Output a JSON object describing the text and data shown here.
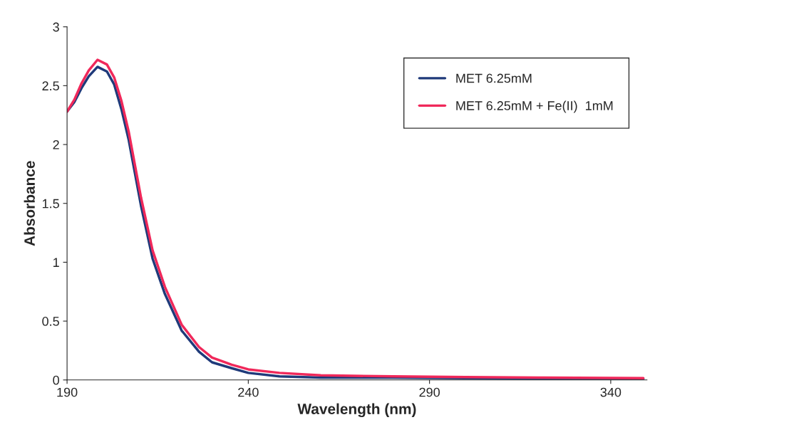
{
  "chart_data": {
    "type": "line",
    "xlabel": "Wavelength (nm)",
    "ylabel": "Absorbance",
    "xlim": [
      190,
      350
    ],
    "xticks": [
      190,
      240,
      290,
      340
    ],
    "ylim": [
      0,
      3
    ],
    "yticks": [
      0,
      0.5,
      1,
      1.5,
      2,
      2.5,
      3
    ],
    "grid": false,
    "legend": "top right",
    "marker": "none",
    "line_style": "solid",
    "series": [
      {
        "name": "MET 6.25mM",
        "color": "#1f3a7a",
        "x": [
          190,
          192,
          194,
          196,
          198.4,
          201,
          203,
          205,
          207,
          210.4,
          213.6,
          217,
          221.6,
          226.4,
          230,
          235.4,
          240,
          248.6,
          260,
          280,
          300,
          320,
          349
        ],
        "values": [
          2.28,
          2.36,
          2.48,
          2.58,
          2.66,
          2.62,
          2.51,
          2.3,
          2.04,
          1.48,
          1.03,
          0.73,
          0.42,
          0.24,
          0.15,
          0.1,
          0.06,
          0.03,
          0.02,
          0.02,
          0.015,
          0.01,
          0.01
        ]
      },
      {
        "name": "MET 6.25mM + Fe(II)  1mM",
        "color": "#f0285a",
        "x": [
          190,
          192,
          194,
          196,
          198.4,
          201,
          203,
          205,
          207,
          210.4,
          213.6,
          217,
          221.6,
          226.4,
          230,
          235.4,
          240,
          248.6,
          260,
          280,
          300,
          320,
          349
        ],
        "values": [
          2.28,
          2.38,
          2.52,
          2.63,
          2.72,
          2.68,
          2.57,
          2.37,
          2.11,
          1.55,
          1.1,
          0.79,
          0.47,
          0.28,
          0.19,
          0.13,
          0.09,
          0.06,
          0.04,
          0.03,
          0.025,
          0.02,
          0.015
        ]
      }
    ]
  }
}
